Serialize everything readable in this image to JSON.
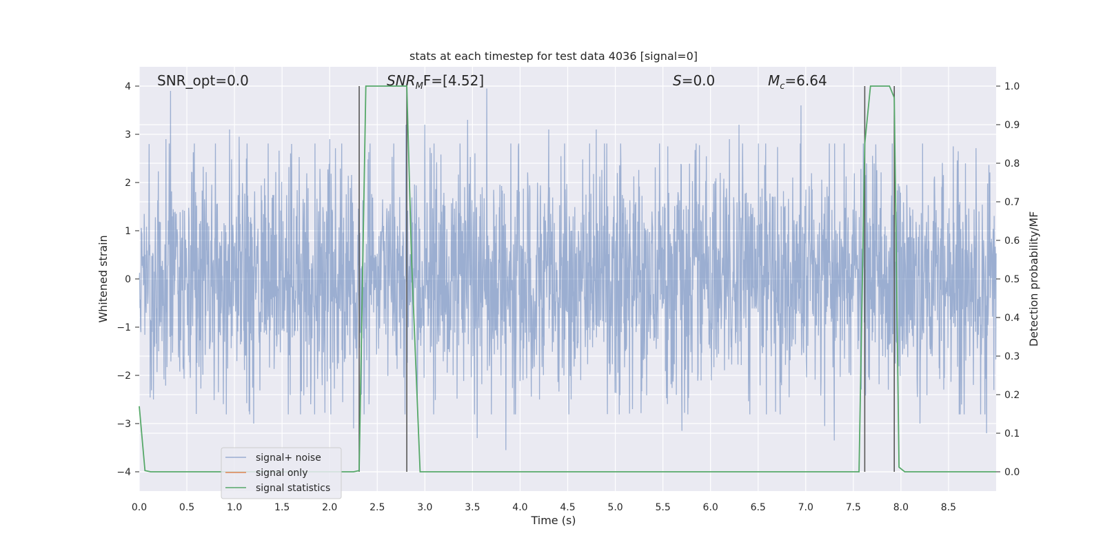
{
  "chart_data": {
    "type": "line",
    "title": "stats at each timestep for test data 4036 [signal=0]",
    "xlabel": "Time (s)",
    "ylabel": "Whitened strain",
    "y2label": "Detection probability/MF",
    "xlim": [
      0.0,
      9.0
    ],
    "ylim": [
      -4.4,
      4.4
    ],
    "y2lim": [
      -0.05,
      1.05
    ],
    "xticks": [
      0.0,
      0.5,
      1.0,
      1.5,
      2.0,
      2.5,
      3.0,
      3.5,
      4.0,
      4.5,
      5.0,
      5.5,
      6.0,
      6.5,
      7.0,
      7.5,
      8.0,
      8.5
    ],
    "xtick_labels": [
      "0.0",
      "0.5",
      "1.0",
      "1.5",
      "2.0",
      "2.5",
      "3.0",
      "3.5",
      "4.0",
      "4.5",
      "5.0",
      "5.5",
      "6.0",
      "6.5",
      "7.0",
      "7.5",
      "8.0",
      "8.5"
    ],
    "yticks": [
      -4,
      -3,
      -2,
      -1,
      0,
      1,
      2,
      3,
      4
    ],
    "ytick_labels": [
      "−4",
      "−3",
      "−2",
      "−1",
      "0",
      "1",
      "2",
      "3",
      "4"
    ],
    "y2ticks": [
      0.0,
      0.1,
      0.2,
      0.3,
      0.4,
      0.5,
      0.6,
      0.7,
      0.8,
      0.9,
      1.0
    ],
    "y2tick_labels": [
      "0.0",
      "0.1",
      "0.2",
      "0.3",
      "0.4",
      "0.5",
      "0.6",
      "0.7",
      "0.8",
      "0.9",
      "1.0"
    ],
    "grid": true,
    "legend_position": "lower-left",
    "annotations": {
      "snr_opt": "SNR_opt=0.0",
      "snr_mf_main": "SNR",
      "snr_mf_sub": "M",
      "snr_mf_rest": "F=[4.52]",
      "s_main": "S",
      "s_rest": "=0.0",
      "mc_main": "M",
      "mc_sub": "c",
      "mc_rest": "=6.64"
    },
    "series": [
      {
        "name": "signal+ noise",
        "color": "#4c72b0",
        "opacity": 0.5,
        "axis": "left",
        "description_envelope": {
          "typical_abs": 1.6,
          "peak_abs": 3.9
        },
        "peaks": [
          {
            "x": 0.33,
            "y": 3.9
          },
          {
            "x": 0.28,
            "y": 2.9
          },
          {
            "x": 0.95,
            "y": 3.1
          },
          {
            "x": 1.05,
            "y": 2.95
          },
          {
            "x": 1.6,
            "y": 2.8
          },
          {
            "x": 2.0,
            "y": 2.9
          },
          {
            "x": 2.8,
            "y": 3.2
          },
          {
            "x": 3.0,
            "y": 3.2
          },
          {
            "x": 3.45,
            "y": 3.3
          },
          {
            "x": 3.65,
            "y": 3.95
          },
          {
            "x": 4.3,
            "y": 3.1
          },
          {
            "x": 4.8,
            "y": 3.1
          },
          {
            "x": 5.55,
            "y": 2.75
          },
          {
            "x": 6.2,
            "y": 2.9
          },
          {
            "x": 6.3,
            "y": 3.2
          },
          {
            "x": 6.95,
            "y": 3.6
          },
          {
            "x": 7.3,
            "y": 3.35
          },
          {
            "x": 8.55,
            "y": 2.75
          },
          {
            "x": 3.55,
            "y": 3.2
          },
          {
            "x": 0.6,
            "y": -2.8
          },
          {
            "x": 1.2,
            "y": -3.0
          },
          {
            "x": 1.8,
            "y": -2.6
          },
          {
            "x": 2.25,
            "y": -3.1
          },
          {
            "x": 3.85,
            "y": -3.55
          },
          {
            "x": 3.55,
            "y": -3.3
          },
          {
            "x": 5.7,
            "y": -3.15
          },
          {
            "x": 7.2,
            "y": -3.05
          },
          {
            "x": 7.3,
            "y": -3.35
          },
          {
            "x": 8.2,
            "y": -3.0
          },
          {
            "x": 8.9,
            "y": -3.2
          },
          {
            "x": 0.15,
            "y": -2.5
          }
        ]
      },
      {
        "name": "signal only",
        "color": "#dd8452",
        "axis": "left",
        "values": []
      },
      {
        "name": "signal statistics",
        "color": "#55a868",
        "axis": "right",
        "points": [
          [
            0.0,
            0.17
          ],
          [
            0.06,
            0.003
          ],
          [
            0.12,
            0.0
          ],
          [
            2.25,
            0.0
          ],
          [
            2.31,
            0.003
          ],
          [
            2.38,
            1.0
          ],
          [
            2.81,
            1.0
          ],
          [
            2.86,
            0.55
          ],
          [
            2.95,
            0.0
          ],
          [
            7.56,
            0.0
          ],
          [
            7.62,
            0.85
          ],
          [
            7.68,
            1.0
          ],
          [
            7.88,
            1.0
          ],
          [
            7.93,
            0.97
          ],
          [
            7.98,
            0.012
          ],
          [
            8.04,
            0.0
          ],
          [
            9.0,
            0.0
          ]
        ]
      }
    ],
    "vertical_markers": {
      "color": "#555555",
      "x": [
        2.31,
        2.81,
        7.62,
        7.93
      ]
    }
  }
}
